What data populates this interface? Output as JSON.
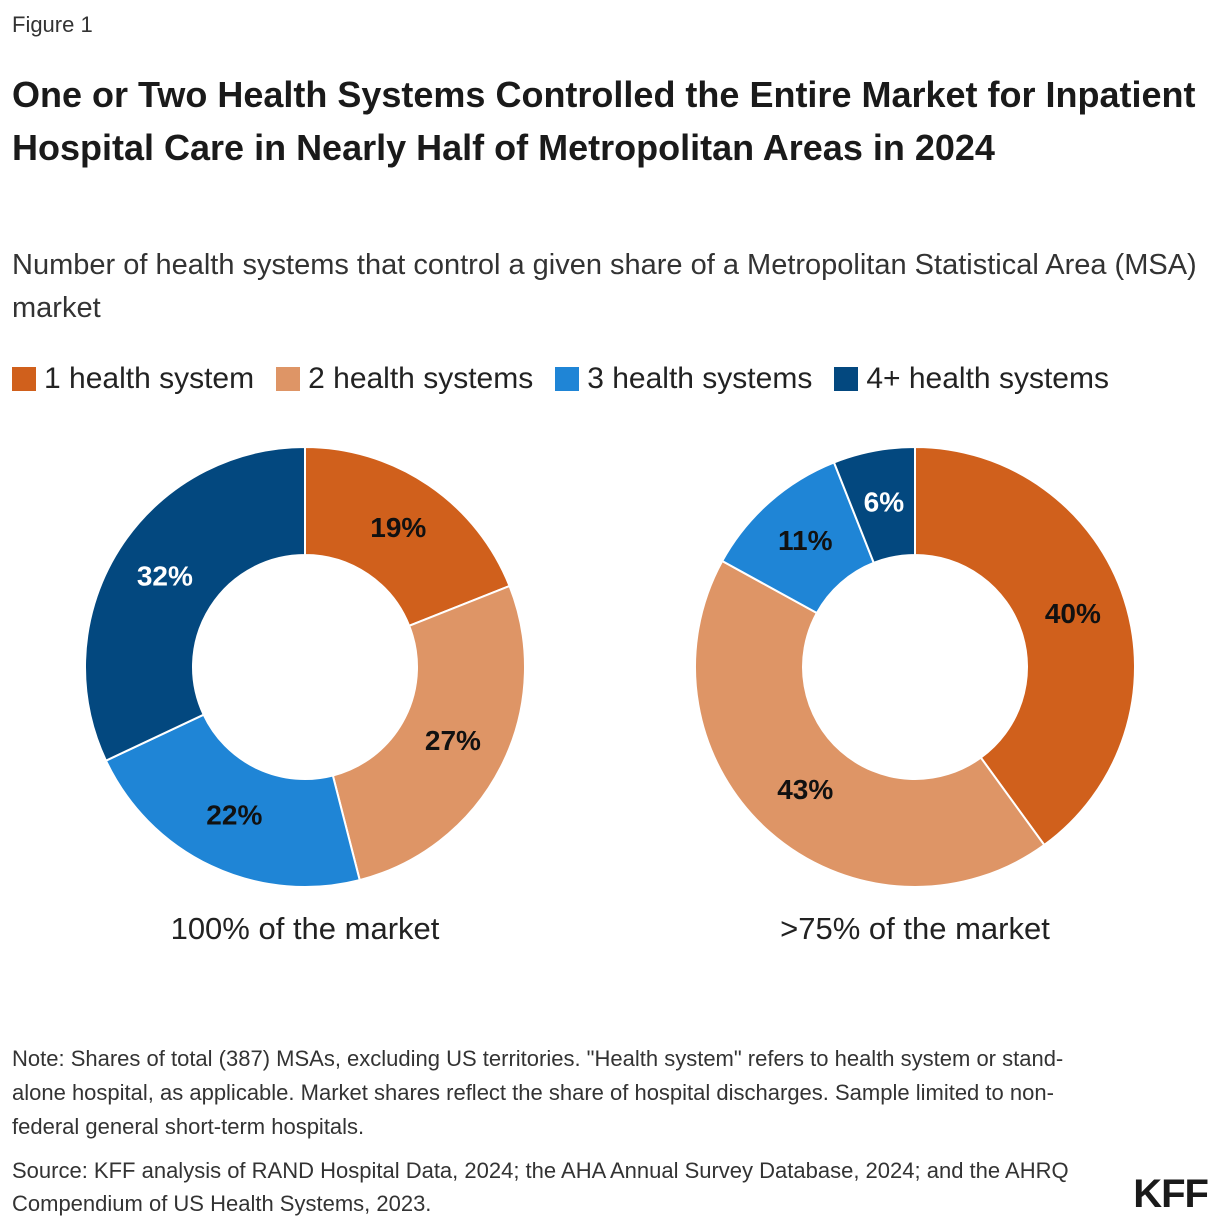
{
  "header": {
    "figure": "Figure 1",
    "title": "One or Two Health Systems Controlled the Entire Market for Inpatient Hospital Care in Nearly Half of Metropolitan Areas in 2024",
    "subtitle": "Number of health systems that control a given share of a Metropolitan Statistical Area (MSA) market"
  },
  "legend": {
    "labels": [
      "1 health system",
      "2 health systems",
      "3 health systems",
      "4+ health systems"
    ],
    "colors": [
      "#d0601c",
      "#de9566",
      "#1f85d6",
      "#03487f"
    ]
  },
  "chart_data": [
    {
      "type": "pie",
      "donut": true,
      "title": "100% of the market",
      "values": [
        19,
        27,
        22,
        32
      ],
      "value_labels": [
        "19%",
        "27%",
        "22%",
        "32%"
      ]
    },
    {
      "type": "pie",
      "donut": true,
      "title": ">75% of the market",
      "values": [
        40,
        43,
        11,
        6
      ],
      "value_labels": [
        "40%",
        "43%",
        "11%",
        "6%"
      ]
    }
  ],
  "footer": {
    "note": "Note: Shares of total (387) MSAs, excluding US territories. \"Health system\" refers to health system or stand-alone hospital, as applicable. Market shares reflect the share of hospital discharges. Sample limited to non-federal general short-term hospitals.",
    "source": "Source: KFF analysis of RAND Hospital Data, 2024; the AHA Annual Survey Database, 2024; and the AHRQ Compendium of US Health Systems, 2023.",
    "logo": "KFF"
  }
}
